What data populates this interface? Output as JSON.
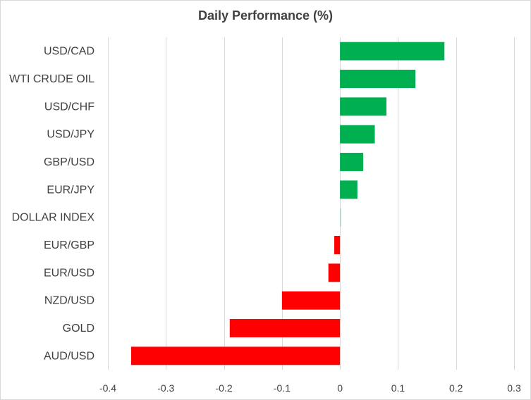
{
  "chart_data": {
    "type": "bar",
    "orientation": "horizontal",
    "title": "Daily Performance (%)",
    "xlabel": "",
    "ylabel": "",
    "categories": [
      "USD/CAD",
      "WTI CRUDE OIL",
      "USD/CHF",
      "USD/JPY",
      "GBP/USD",
      "EUR/JPY",
      "DOLLAR INDEX",
      "EUR/GBP",
      "EUR/USD",
      "NZD/USD",
      "GOLD",
      "AUD/USD"
    ],
    "values": [
      0.18,
      0.13,
      0.08,
      0.06,
      0.04,
      0.03,
      0.002,
      -0.01,
      -0.02,
      -0.1,
      -0.19,
      -0.36
    ],
    "xlim": [
      -0.4,
      0.3
    ],
    "x_ticks": [
      "-0.4",
      "-0.3",
      "-0.2",
      "-0.1",
      "0",
      "0.1",
      "0.2",
      "0.3"
    ],
    "x_tick_values": [
      -0.4,
      -0.3,
      -0.2,
      -0.1,
      0,
      0.1,
      0.2,
      0.3
    ],
    "grid": "vertical",
    "legend": "none",
    "colors": {
      "positive": "#00b050",
      "negative": "#ff0000",
      "grid": "#d9d9d9",
      "text": "#404040"
    }
  }
}
